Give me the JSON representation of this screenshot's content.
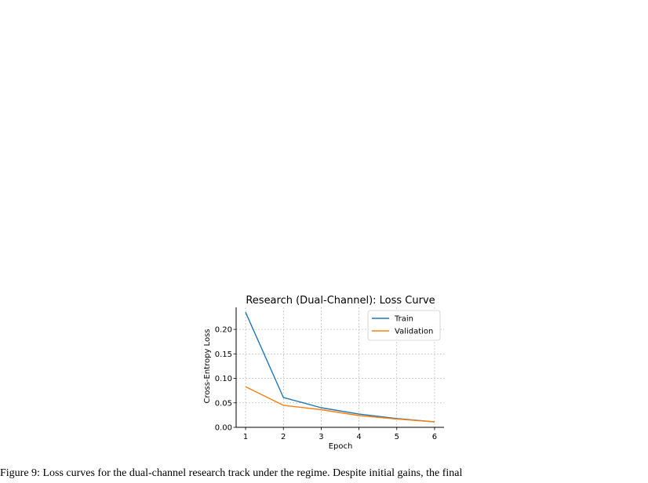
{
  "chart_data": {
    "type": "line",
    "title": "Research (Dual-Channel): Loss Curve",
    "xlabel": "Epoch",
    "ylabel": "Cross-Entropy Loss",
    "x": [
      1,
      2,
      3,
      4,
      5,
      6
    ],
    "xticks": [
      "1",
      "2",
      "3",
      "4",
      "5",
      "6"
    ],
    "yticks": [
      "0.00",
      "0.05",
      "0.10",
      "0.15",
      "0.20"
    ],
    "ylim": [
      0,
      0.245
    ],
    "xlim": [
      0.75,
      6.25
    ],
    "grid": true,
    "legend_position": "upper-right",
    "series": [
      {
        "name": "Train",
        "color": "#1f77b4",
        "values": [
          0.235,
          0.061,
          0.04,
          0.027,
          0.018,
          0.011
        ]
      },
      {
        "name": "Validation",
        "color": "#ff7f0e",
        "values": [
          0.083,
          0.045,
          0.036,
          0.024,
          0.017,
          0.011
        ]
      }
    ]
  },
  "caption": "Figure 9: Loss curves for the dual-channel research track under the regime. Despite initial gains, the final"
}
